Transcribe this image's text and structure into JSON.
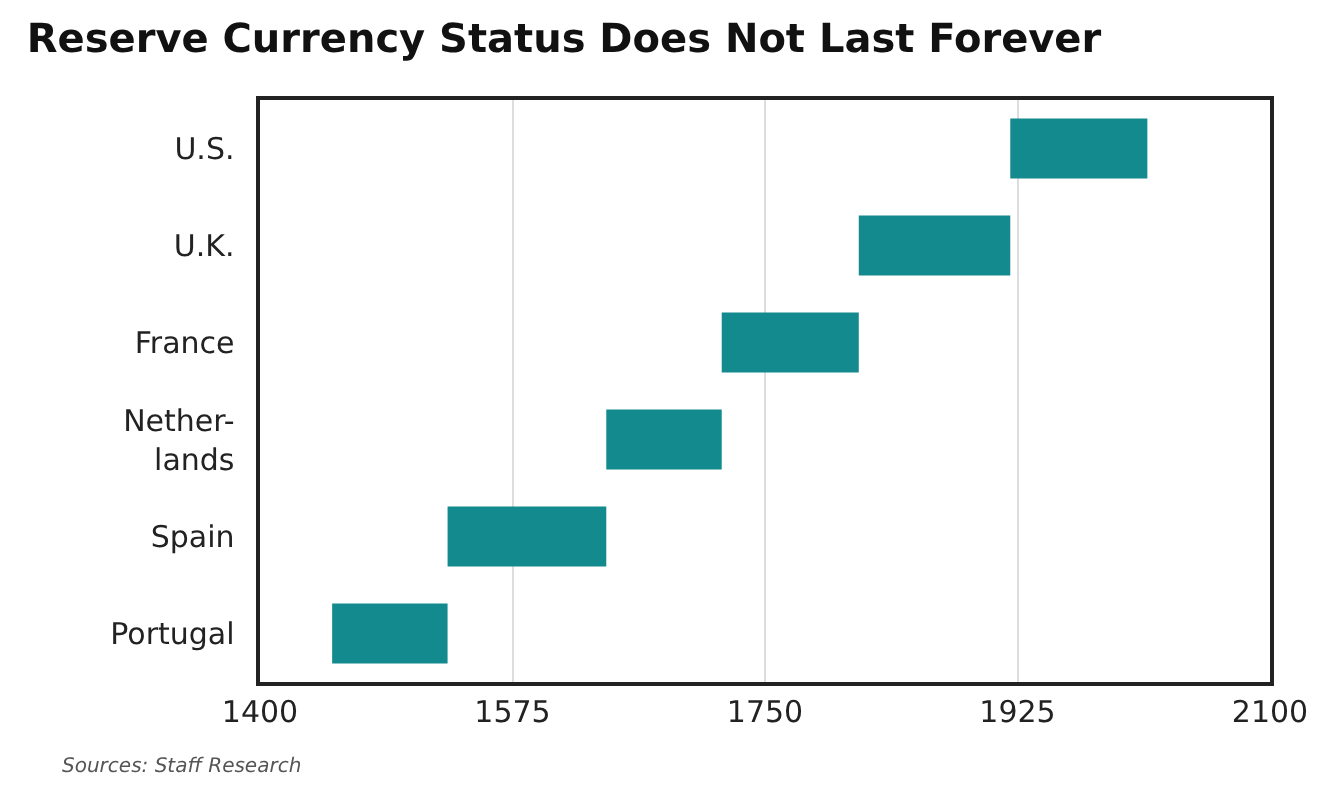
{
  "chart_data": {
    "type": "bar",
    "orientation": "horizontal",
    "title": "Reserve Currency Status Does Not Last Forever",
    "categories": [
      "U.S.",
      "U.K.",
      "France",
      "Nether-\nlands",
      "Spain",
      "Portugal"
    ],
    "base": [
      1920,
      1815,
      1720,
      1640,
      1530,
      1450
    ],
    "values": [
      95,
      105,
      95,
      80,
      110,
      80
    ],
    "color": "#138a8e",
    "xlim": [
      1400,
      2100
    ],
    "xticks": [
      1400,
      1575,
      1750,
      1925,
      2100
    ],
    "grid": "x",
    "annotations": [
      "Sources: Staff Research"
    ]
  }
}
